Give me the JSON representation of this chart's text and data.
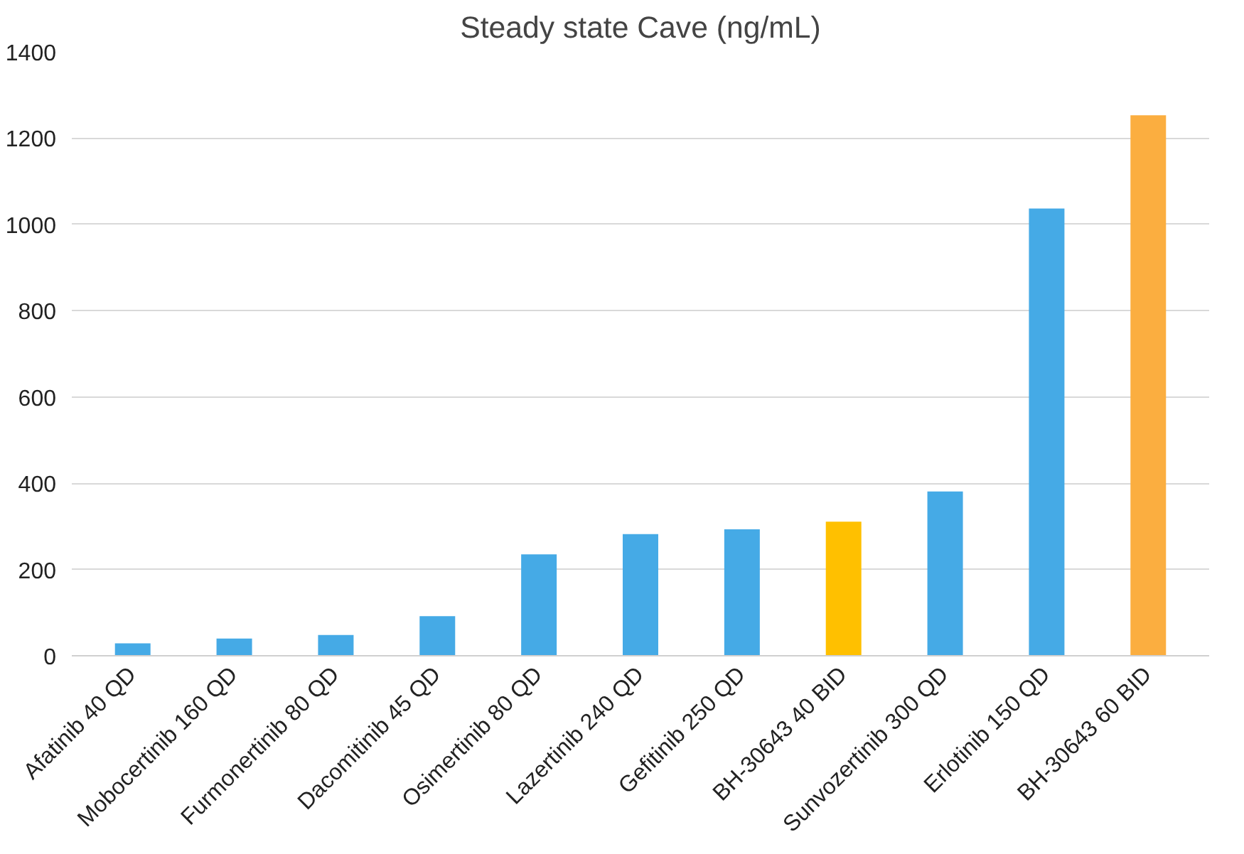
{
  "chart_data": {
    "type": "bar",
    "title": "Steady state Cave (ng/mL)",
    "categories": [
      "Afatinib 40 QD",
      "Mobocertinib 160 QD",
      "Furmonertinib 80 QD",
      "Dacomitinib 45 QD",
      "Osimertinib 80 QD",
      "Lazertinib 240 QD",
      "Gefitinib 250 QD",
      "BH-30643 40 BID",
      "Sunvozertinib 300 QD",
      "Erlotinib 150 QD",
      "BH-30643 60 BID"
    ],
    "values": [
      29,
      40,
      48,
      92,
      235,
      282,
      293,
      311,
      381,
      1037,
      1253
    ],
    "colors": [
      "#45aae6",
      "#45aae6",
      "#45aae6",
      "#45aae6",
      "#45aae6",
      "#45aae6",
      "#45aae6",
      "#ffc000",
      "#45aae6",
      "#45aae6",
      "#fbae40"
    ],
    "ylim": [
      0,
      1400
    ],
    "yticks": [
      0,
      200,
      400,
      600,
      800,
      1000,
      1200,
      1400
    ],
    "grid": "y"
  }
}
